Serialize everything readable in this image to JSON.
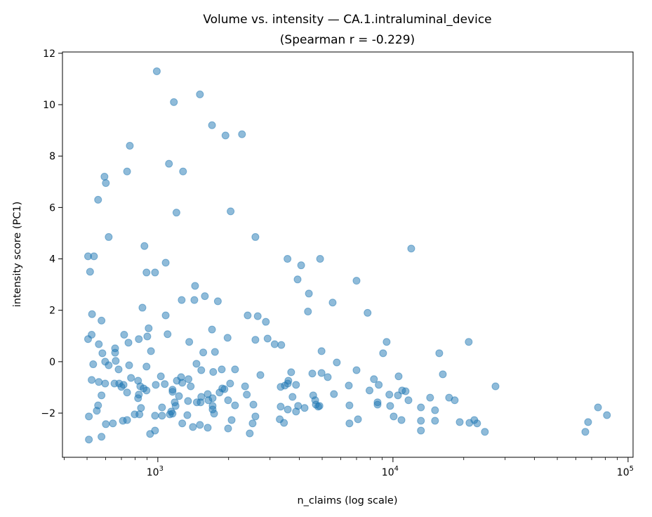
{
  "chart_data": {
    "type": "scatter",
    "title_line1": "Volume vs. intensity — CA.1.intraluminal_device",
    "title_line2": "(Spearman r = -0.229)",
    "xlabel": "n_claims (log scale)",
    "ylabel": "intensity score (PC1)",
    "x_scale": "log",
    "xlim": [
      393,
      105000
    ],
    "ylim": [
      -3.72,
      12.05
    ],
    "x_ticks": [
      {
        "value": 1000,
        "base": "10",
        "exp": "3"
      },
      {
        "value": 10000,
        "base": "10",
        "exp": "4"
      },
      {
        "value": 100000,
        "base": "10",
        "exp": "5"
      }
    ],
    "y_ticks": [
      {
        "value": -2,
        "label": "−2"
      },
      {
        "value": 0,
        "label": "0"
      },
      {
        "value": 2,
        "label": "2"
      },
      {
        "value": 4,
        "label": "4"
      },
      {
        "value": 6,
        "label": "6"
      },
      {
        "value": 8,
        "label": "8"
      },
      {
        "value": 10,
        "label": "10"
      },
      {
        "value": 12,
        "label": "12"
      }
    ],
    "grid": false,
    "marker_color": "#1f77b4",
    "marker_alpha": 0.5,
    "points": [
      [
        990,
        11.3
      ],
      [
        1510,
        10.4
      ],
      [
        1170,
        10.1
      ],
      [
        1700,
        9.2
      ],
      [
        1940,
        8.8
      ],
      [
        2280,
        8.85
      ],
      [
        760,
        8.4
      ],
      [
        1115,
        7.7
      ],
      [
        1280,
        7.4
      ],
      [
        740,
        7.4
      ],
      [
        593,
        7.2
      ],
      [
        601,
        6.95
      ],
      [
        557,
        6.3
      ],
      [
        1200,
        5.8
      ],
      [
        2040,
        5.85
      ],
      [
        618,
        4.85
      ],
      [
        2600,
        4.85
      ],
      [
        505,
        4.1
      ],
      [
        535,
        4.1
      ],
      [
        877,
        4.5
      ],
      [
        11960,
        4.4
      ],
      [
        3560,
        4.0
      ],
      [
        4900,
        4.0
      ],
      [
        4070,
        3.75
      ],
      [
        1080,
        3.85
      ],
      [
        515,
        3.5
      ],
      [
        895,
        3.47
      ],
      [
        973,
        3.47
      ],
      [
        3930,
        3.2
      ],
      [
        7000,
        3.15
      ],
      [
        1440,
        2.95
      ],
      [
        4390,
        2.65
      ],
      [
        1585,
        2.55
      ],
      [
        1263,
        2.4
      ],
      [
        1430,
        2.4
      ],
      [
        1800,
        2.35
      ],
      [
        5540,
        2.3
      ],
      [
        860,
        2.1
      ],
      [
        4350,
        1.95
      ],
      [
        7800,
        1.9
      ],
      [
        525,
        1.85
      ],
      [
        1080,
        1.8
      ],
      [
        2410,
        1.8
      ],
      [
        2660,
        1.77
      ],
      [
        576,
        1.6
      ],
      [
        2880,
        1.55
      ],
      [
        1700,
        1.25
      ],
      [
        523,
        1.05
      ],
      [
        719,
        1.05
      ],
      [
        1100,
        1.07
      ],
      [
        914,
        1.3
      ],
      [
        505,
        0.88
      ],
      [
        830,
        0.88
      ],
      [
        902,
        0.98
      ],
      [
        2600,
        0.85
      ],
      [
        2930,
        0.9
      ],
      [
        1980,
        0.93
      ],
      [
        9400,
        0.77
      ],
      [
        21000,
        0.77
      ],
      [
        3140,
        0.68
      ],
      [
        3350,
        0.65
      ],
      [
        1360,
        0.77
      ],
      [
        750,
        0.74
      ],
      [
        561,
        0.68
      ],
      [
        658,
        0.52
      ],
      [
        658,
        0.35
      ],
      [
        581,
        0.33
      ],
      [
        935,
        0.41
      ],
      [
        1560,
        0.36
      ],
      [
        1750,
        0.38
      ],
      [
        4970,
        0.41
      ],
      [
        9080,
        0.33
      ],
      [
        15740,
        0.33
      ],
      [
        597,
        0.0
      ],
      [
        662,
        0.03
      ],
      [
        531,
        -0.1
      ],
      [
        618,
        -0.14
      ],
      [
        755,
        -0.14
      ],
      [
        681,
        -0.3
      ],
      [
        895,
        -0.19
      ],
      [
        1460,
        -0.08
      ],
      [
        1530,
        -0.33
      ],
      [
        1870,
        -0.3
      ],
      [
        2130,
        -0.3
      ],
      [
        1720,
        -0.4
      ],
      [
        5770,
        -0.03
      ],
      [
        7000,
        -0.33
      ],
      [
        16300,
        -0.49
      ],
      [
        3690,
        -0.41
      ],
      [
        2730,
        -0.52
      ],
      [
        4540,
        -0.46
      ],
      [
        4970,
        -0.44
      ],
      [
        5280,
        -0.6
      ],
      [
        1030,
        -0.57
      ],
      [
        1256,
        -0.6
      ],
      [
        10570,
        -0.57
      ],
      [
        8300,
        -0.68
      ],
      [
        523,
        -0.71
      ],
      [
        561,
        -0.79
      ],
      [
        597,
        -0.85
      ],
      [
        769,
        -0.63
      ],
      [
        1350,
        -0.68
      ],
      [
        1205,
        -0.74
      ],
      [
        980,
        -0.9
      ],
      [
        824,
        -0.74
      ],
      [
        1070,
        -0.87
      ],
      [
        654,
        -0.85
      ],
      [
        715,
        -0.9
      ],
      [
        685,
        -0.85
      ],
      [
        842,
        -0.96
      ],
      [
        1270,
        -0.82
      ],
      [
        1380,
        -0.96
      ],
      [
        2030,
        -0.85
      ],
      [
        2350,
        -0.96
      ],
      [
        3590,
        -0.74
      ],
      [
        3570,
        -0.85
      ],
      [
        3470,
        -0.93
      ],
      [
        3330,
        -0.98
      ],
      [
        3870,
        -0.9
      ],
      [
        6490,
        -0.93
      ],
      [
        8700,
        -0.9
      ],
      [
        27300,
        -0.96
      ],
      [
        870,
        -1.04
      ],
      [
        700,
        -0.98
      ],
      [
        895,
        -1.12
      ],
      [
        740,
        -1.2
      ],
      [
        1880,
        -1.04
      ],
      [
        1920,
        -1.07
      ],
      [
        1830,
        -1.2
      ],
      [
        1155,
        -1.09
      ],
      [
        1155,
        -1.17
      ],
      [
        830,
        -1.28
      ],
      [
        824,
        -1.42
      ],
      [
        1630,
        -1.26
      ],
      [
        1530,
        -1.37
      ],
      [
        1710,
        -1.42
      ],
      [
        1230,
        -1.34
      ],
      [
        576,
        -1.31
      ],
      [
        2390,
        -1.28
      ],
      [
        3740,
        -1.37
      ],
      [
        5610,
        -1.26
      ],
      [
        4580,
        -1.31
      ],
      [
        7950,
        -1.12
      ],
      [
        9650,
        -1.28
      ],
      [
        10500,
        -1.31
      ],
      [
        10940,
        -1.12
      ],
      [
        11320,
        -1.15
      ],
      [
        11640,
        -1.5
      ],
      [
        14390,
        -1.4
      ],
      [
        17330,
        -1.4
      ],
      [
        18310,
        -1.5
      ],
      [
        6530,
        -1.7
      ],
      [
        4670,
        -1.5
      ],
      [
        1344,
        -1.53
      ],
      [
        1180,
        -1.58
      ],
      [
        1520,
        -1.58
      ],
      [
        1465,
        -1.58
      ],
      [
        1640,
        -1.5
      ],
      [
        1990,
        -1.5
      ],
      [
        1190,
        -1.72
      ],
      [
        2130,
        -1.7
      ],
      [
        2550,
        -1.67
      ],
      [
        557,
        -1.7
      ],
      [
        848,
        -1.8
      ],
      [
        1042,
        -1.78
      ],
      [
        1710,
        -1.72
      ],
      [
        1710,
        -1.86
      ],
      [
        1735,
        -2.02
      ],
      [
        1140,
        -1.94
      ],
      [
        1155,
        -2.02
      ],
      [
        3330,
        -1.75
      ],
      [
        3570,
        -1.86
      ],
      [
        3950,
        -1.72
      ],
      [
        4210,
        -1.8
      ],
      [
        3870,
        -1.94
      ],
      [
        4700,
        -1.67
      ],
      [
        4810,
        -1.75
      ],
      [
        4870,
        -1.72
      ],
      [
        8600,
        -1.67
      ],
      [
        8600,
        -1.58
      ],
      [
        9730,
        -1.72
      ],
      [
        13150,
        -1.78
      ],
      [
        15100,
        -1.89
      ],
      [
        74500,
        -1.78
      ],
      [
        550,
        -1.91
      ],
      [
        797,
        -2.05
      ],
      [
        835,
        -2.05
      ],
      [
        973,
        -2.1
      ],
      [
        1042,
        -2.1
      ],
      [
        1125,
        -2.05
      ],
      [
        509,
        -2.13
      ],
      [
        1335,
        -2.08
      ],
      [
        2060,
        -2.27
      ],
      [
        2600,
        -2.13
      ],
      [
        3300,
        -2.24
      ],
      [
        7100,
        -2.24
      ],
      [
        10070,
        -2.13
      ],
      [
        10870,
        -2.27
      ],
      [
        13150,
        -2.3
      ],
      [
        15100,
        -2.3
      ],
      [
        19230,
        -2.35
      ],
      [
        21150,
        -2.38
      ],
      [
        22180,
        -2.27
      ],
      [
        22800,
        -2.4
      ],
      [
        67600,
        -2.35
      ],
      [
        81300,
        -2.08
      ],
      [
        710,
        -2.3
      ],
      [
        740,
        -2.27
      ],
      [
        601,
        -2.43
      ],
      [
        644,
        -2.4
      ],
      [
        1270,
        -2.4
      ],
      [
        1410,
        -2.54
      ],
      [
        1510,
        -2.46
      ],
      [
        1630,
        -2.57
      ],
      [
        1990,
        -2.6
      ],
      [
        2530,
        -2.4
      ],
      [
        3440,
        -2.38
      ],
      [
        6530,
        -2.4
      ],
      [
        13150,
        -2.68
      ],
      [
        24600,
        -2.73
      ],
      [
        65800,
        -2.73
      ],
      [
        927,
        -2.81
      ],
      [
        973,
        -2.68
      ],
      [
        2460,
        -2.79
      ],
      [
        576,
        -2.92
      ],
      [
        509,
        -3.03
      ]
    ]
  }
}
